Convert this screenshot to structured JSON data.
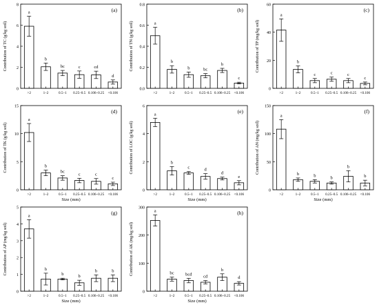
{
  "chart_data": [
    {
      "type": "bar",
      "panel_label": "(a)",
      "categories": [
        ">2",
        "1–2",
        "0.5–1",
        "0.25–0.5",
        "0.106–0.25",
        "<0.106"
      ],
      "values": [
        5.9,
        2.05,
        1.45,
        1.3,
        1.28,
        0.6
      ],
      "errors": [
        0.95,
        0.35,
        0.25,
        0.35,
        0.35,
        0.2
      ],
      "letters": [
        "a",
        "b",
        "bc",
        "c",
        "cd",
        "d"
      ],
      "ylim": [
        0,
        8
      ],
      "yticks": [
        0,
        2,
        4,
        6,
        8
      ],
      "xlabel": "",
      "ylabel": "Contribution of TC (g/kg soil)"
    },
    {
      "type": "bar",
      "panel_label": "(b)",
      "categories": [
        ">2",
        "1–2",
        "0.5–1",
        "0.25–0.5",
        "0.106–0.25",
        "<0.106"
      ],
      "values": [
        0.5,
        0.18,
        0.13,
        0.12,
        0.17,
        0.05
      ],
      "errors": [
        0.08,
        0.035,
        0.025,
        0.02,
        0.02,
        0.008
      ],
      "letters": [
        "a",
        "b",
        "b",
        "bc",
        "b",
        "c"
      ],
      "ylim": [
        0,
        0.8
      ],
      "yticks": [
        0.0,
        0.2,
        0.4,
        0.6,
        0.8
      ],
      "xlabel": "",
      "ylabel": "Contribution of TN (g/kg soil)"
    },
    {
      "type": "bar",
      "panel_label": "(c)",
      "categories": [
        ">2",
        "1–2",
        "0.5–1",
        "0.25–0.5",
        "0.106–0.25",
        "<0.106"
      ],
      "values": [
        41.5,
        13.5,
        5.5,
        6.5,
        5.5,
        3.5
      ],
      "errors": [
        8,
        2.5,
        1.5,
        1.5,
        1.5,
        1
      ],
      "letters": [
        "a",
        "b",
        "c",
        "c",
        "c",
        "c"
      ],
      "ylim": [
        0,
        60
      ],
      "yticks": [
        0,
        20,
        40,
        60
      ],
      "xlabel": "",
      "ylabel": "Contribution of TP (mg/kg soil)"
    },
    {
      "type": "bar",
      "panel_label": "(d)",
      "categories": [
        ">2",
        "1–2",
        "0.5–1",
        "0.25–0.5",
        "0.106–0.25",
        "<0.106"
      ],
      "values": [
        10.2,
        3.0,
        2.1,
        1.65,
        1.5,
        1.05
      ],
      "errors": [
        1.6,
        0.5,
        0.4,
        0.4,
        0.5,
        0.3
      ],
      "letters": [
        "a",
        "b",
        "bc",
        "c",
        "c",
        "c"
      ],
      "ylim": [
        0,
        15
      ],
      "yticks": [
        0,
        5,
        10,
        15
      ],
      "xlabel": "Size (mm)",
      "ylabel": "Contribution of TK (g/kg soil)"
    },
    {
      "type": "bar",
      "panel_label": "(e)",
      "categories": [
        ">2",
        "1–2",
        "0.5–1",
        "0.25–0.5",
        "0.106–0.25",
        "<0.106"
      ],
      "values": [
        4.8,
        1.35,
        1.2,
        0.95,
        0.8,
        0.5
      ],
      "errors": [
        0.3,
        0.3,
        0.1,
        0.2,
        0.1,
        0.15
      ],
      "letters": [
        "a",
        "b",
        "c",
        "d",
        "d",
        "e"
      ],
      "ylim": [
        0,
        6
      ],
      "yticks": [
        0,
        2,
        4,
        6
      ],
      "xlabel": "Size (mm)",
      "ylabel": "Contribution of LOC (g/kg soil)"
    },
    {
      "type": "bar",
      "panel_label": "(f)",
      "categories": [
        ">2",
        "1–2",
        "0.5–1",
        "0.25–0.5",
        "0.106–0.25",
        "<0.106"
      ],
      "values": [
        108,
        18,
        15,
        12,
        24,
        12
      ],
      "errors": [
        17,
        3,
        3,
        2,
        10,
        5
      ],
      "letters": [
        "a",
        "b",
        "b",
        "b",
        "b",
        "b"
      ],
      "ylim": [
        0,
        150
      ],
      "yticks": [
        0,
        50,
        100,
        150
      ],
      "xlabel": "Size (mm)",
      "ylabel": "Contribution of AN (mg/kg soil)"
    },
    {
      "type": "bar",
      "panel_label": "(g)",
      "categories": [
        ">2",
        "1–2",
        "0.5–1",
        "0.25–0.5",
        "0.106–0.25",
        "<0.106"
      ],
      "values": [
        3.7,
        0.72,
        0.72,
        0.5,
        0.77,
        0.77
      ],
      "errors": [
        0.55,
        0.35,
        0.05,
        0.15,
        0.2,
        0.2
      ],
      "letters": [
        "a",
        "b",
        "b",
        "b",
        "b",
        "b"
      ],
      "ylim": [
        0,
        5
      ],
      "yticks": [
        0,
        1,
        2,
        3,
        4,
        5
      ],
      "xlabel": "Size (mm)",
      "ylabel": "Contribution of AP (mg/kg soil)"
    },
    {
      "type": "bar",
      "panel_label": "(h)",
      "categories": [
        ">2",
        "1–2",
        "0.5–1",
        "0.25–0.5",
        "0.106–0.25",
        "<0.106"
      ],
      "values": [
        252,
        43,
        38,
        32,
        50,
        28
      ],
      "errors": [
        20,
        7,
        8,
        6,
        12,
        6
      ],
      "letters": [
        "a",
        "bc",
        "bcd",
        "cd",
        "b",
        "d"
      ],
      "ylim": [
        0,
        300
      ],
      "yticks": [
        0,
        100,
        200,
        300
      ],
      "xlabel": "Size (mm)",
      "ylabel": "Contribution of AK (mg/kg soil)"
    }
  ]
}
